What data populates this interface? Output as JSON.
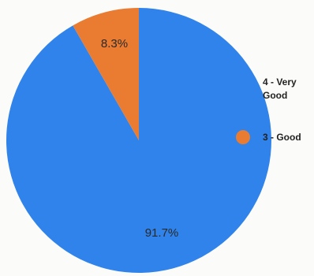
{
  "chart_data": {
    "type": "pie",
    "slices": [
      {
        "label": "4 - Very Good",
        "value": 91.7,
        "display": "91.7%",
        "color": "#2f83ea"
      },
      {
        "label": "3 - Good",
        "value": 8.3,
        "display": "8.3%",
        "color": "#ea7c32"
      }
    ],
    "legend_placement": "right",
    "start_angle": "12 o'clock",
    "direction": "clockwise"
  }
}
